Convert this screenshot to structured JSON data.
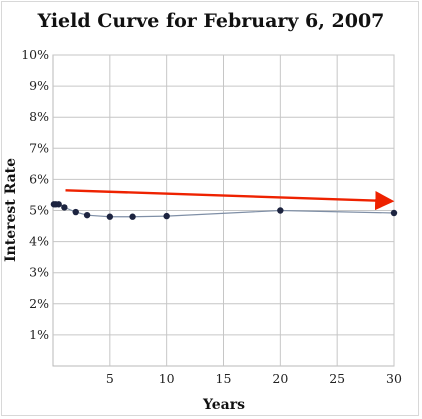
{
  "chart_data": {
    "type": "line",
    "title": "Yield Curve for February 6, 2007",
    "xlabel": "Years",
    "ylabel": "Interest Rate",
    "xlim": [
      0,
      30
    ],
    "ylim": [
      0,
      10
    ],
    "x_ticks": [
      5,
      10,
      15,
      20,
      25,
      30
    ],
    "y_ticks": [
      "1%",
      "2%",
      "3%",
      "4%",
      "5%",
      "6%",
      "7%",
      "8%",
      "9%",
      "10%"
    ],
    "grid": true,
    "series": [
      {
        "x": [
          0.08,
          0.25,
          0.5,
          1,
          2,
          3,
          5,
          7,
          10,
          20,
          30
        ],
        "y": [
          5.2,
          5.2,
          5.2,
          5.1,
          4.95,
          4.85,
          4.8,
          4.8,
          4.82,
          5.0,
          4.92
        ],
        "line_color": "#7f8fa6",
        "marker_color": "#1d2440"
      }
    ],
    "annotations": [
      {
        "type": "arrow",
        "from": [
          1.1,
          5.65
        ],
        "to": [
          30,
          5.3
        ],
        "color": "#ee2200"
      }
    ]
  }
}
